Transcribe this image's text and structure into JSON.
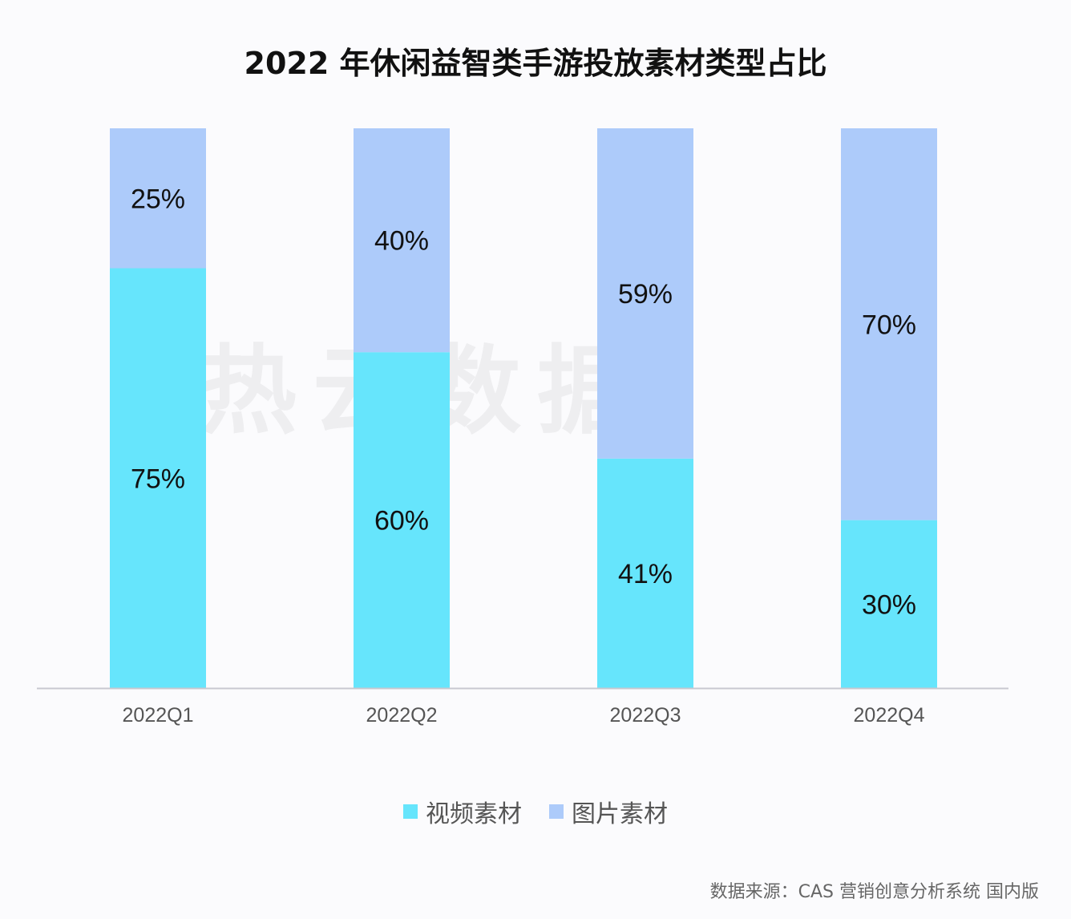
{
  "chart_data": {
    "type": "bar",
    "stacked": true,
    "title": "2022 年休闲益智类手游投放素材类型占比",
    "categories": [
      "2022Q1",
      "2022Q2",
      "2022Q3",
      "2022Q4"
    ],
    "series": [
      {
        "name": "视频素材",
        "values": [
          75,
          60,
          41,
          30
        ],
        "color": "#66E5FC"
      },
      {
        "name": "图片素材",
        "values": [
          25,
          40,
          59,
          70
        ],
        "color": "#ADCBFA"
      }
    ],
    "value_format": "percent",
    "ylim": [
      0,
      100
    ],
    "grid": false,
    "legend_position": "bottom"
  },
  "source": "数据来源：CAS 营销创意分析系统 国内版",
  "watermark": "热云数据"
}
